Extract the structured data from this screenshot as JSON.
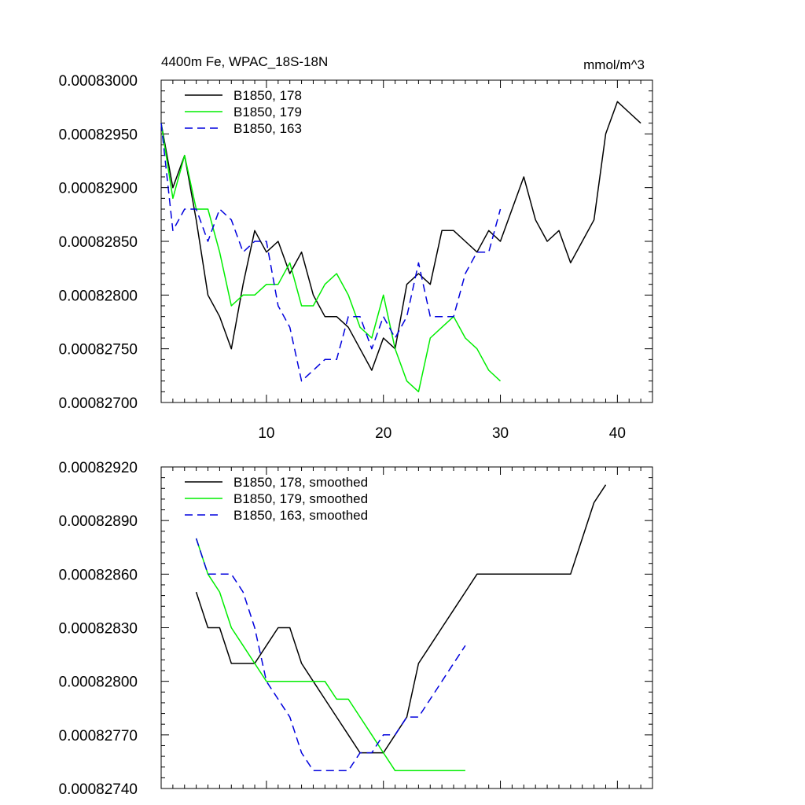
{
  "chart_data": [
    {
      "type": "line",
      "title": "4400m Fe, WPAC_18S-18N",
      "units": "mmol/m^3",
      "xlim": [
        1,
        43
      ],
      "ylim": [
        0.000827,
        0.00083
      ],
      "x_ticks": [
        10,
        20,
        30,
        40
      ],
      "x_tick_labels": [
        "10",
        "20",
        "30",
        "40"
      ],
      "y_ticks": [
        0.000827,
        0.0008275,
        0.000828,
        0.0008285,
        0.000829,
        0.0008295,
        0.00083
      ],
      "y_tick_labels": [
        "0.00082700",
        "0.00082750",
        "0.00082800",
        "0.00082850",
        "0.00082900",
        "0.00082950",
        "0.00083000"
      ],
      "legend_position": "top-left",
      "series": [
        {
          "name": "B1850, 178",
          "color": "#000000",
          "dash": "solid",
          "x": [
            1,
            2,
            3,
            4,
            5,
            6,
            7,
            8,
            9,
            10,
            11,
            12,
            13,
            14,
            15,
            16,
            17,
            18,
            19,
            20,
            21,
            22,
            23,
            24,
            25,
            26,
            27,
            28,
            29,
            30,
            31,
            32,
            33,
            34,
            35,
            36,
            37,
            38,
            39,
            40,
            41,
            42
          ],
          "y": [
            0.0008296,
            0.000829,
            0.0008293,
            0.0008287,
            0.000828,
            0.0008278,
            0.0008275,
            0.0008281,
            0.0008286,
            0.0008284,
            0.0008285,
            0.0008282,
            0.0008284,
            0.000828,
            0.0008278,
            0.0008278,
            0.0008277,
            0.0008275,
            0.0008273,
            0.0008276,
            0.0008275,
            0.0008281,
            0.0008282,
            0.0008281,
            0.0008286,
            0.0008286,
            0.0008285,
            0.0008284,
            0.0008286,
            0.0008285,
            0.0008288,
            0.0008291,
            0.0008287,
            0.0008285,
            0.0008286,
            0.0008283,
            0.0008285,
            0.0008287,
            0.0008295,
            0.0008298,
            0.0008297,
            0.0008296
          ]
        },
        {
          "name": "B1850, 179",
          "color": "#00ee00",
          "dash": "solid",
          "x": [
            1,
            2,
            3,
            4,
            5,
            6,
            7,
            8,
            9,
            10,
            11,
            12,
            13,
            14,
            15,
            16,
            17,
            18,
            19,
            20,
            21,
            22,
            23,
            24,
            25,
            26,
            27,
            28,
            29,
            30
          ],
          "y": [
            0.0008296,
            0.0008289,
            0.0008293,
            0.0008288,
            0.0008288,
            0.0008284,
            0.0008279,
            0.000828,
            0.000828,
            0.0008281,
            0.0008281,
            0.0008283,
            0.0008279,
            0.0008279,
            0.0008281,
            0.0008282,
            0.000828,
            0.0008277,
            0.0008276,
            0.000828,
            0.0008275,
            0.0008272,
            0.0008271,
            0.0008276,
            0.0008277,
            0.0008278,
            0.0008276,
            0.0008275,
            0.0008273,
            0.0008272
          ]
        },
        {
          "name": "B1850, 163",
          "color": "#0000dd",
          "dash": "dashed",
          "x": [
            1,
            2,
            3,
            4,
            5,
            6,
            7,
            8,
            9,
            10,
            11,
            12,
            13,
            14,
            15,
            16,
            17,
            18,
            19,
            20,
            21,
            22,
            23,
            24,
            25,
            26,
            27,
            28,
            29,
            30
          ],
          "y": [
            0.0008296,
            0.0008286,
            0.0008288,
            0.0008288,
            0.0008285,
            0.0008288,
            0.0008287,
            0.0008284,
            0.0008285,
            0.0008285,
            0.0008279,
            0.0008277,
            0.0008272,
            0.0008273,
            0.0008274,
            0.0008274,
            0.0008278,
            0.0008278,
            0.0008275,
            0.0008278,
            0.0008276,
            0.0008278,
            0.0008283,
            0.0008278,
            0.0008278,
            0.0008278,
            0.0008282,
            0.0008284,
            0.0008284,
            0.0008288
          ]
        }
      ]
    },
    {
      "type": "line",
      "title": "",
      "xlim": [
        1,
        43
      ],
      "ylim": [
        0.0008274,
        0.0008292
      ],
      "x_ticks": [
        10,
        20,
        30,
        40
      ],
      "x_tick_labels": [],
      "y_ticks": [
        0.0008274,
        0.0008277,
        0.000828,
        0.0008283,
        0.0008286,
        0.0008289,
        0.0008292
      ],
      "y_tick_labels": [
        "0.00082740",
        "0.00082770",
        "0.00082800",
        "0.00082830",
        "0.00082860",
        "0.00082890",
        "0.00082920"
      ],
      "legend_position": "top-left",
      "series": [
        {
          "name": "B1850, 178, smoothed",
          "color": "#000000",
          "dash": "solid",
          "x": [
            4,
            5,
            6,
            7,
            8,
            9,
            10,
            11,
            12,
            13,
            14,
            15,
            16,
            17,
            18,
            19,
            20,
            21,
            22,
            23,
            24,
            25,
            26,
            27,
            28,
            29,
            30,
            31,
            32,
            33,
            34,
            35,
            36,
            37,
            38,
            39
          ],
          "y": [
            0.0008285,
            0.0008283,
            0.0008283,
            0.0008281,
            0.0008281,
            0.0008281,
            0.0008282,
            0.0008283,
            0.0008283,
            0.0008281,
            0.000828,
            0.0008279,
            0.0008278,
            0.0008277,
            0.0008276,
            0.0008276,
            0.0008276,
            0.0008277,
            0.0008278,
            0.0008281,
            0.0008282,
            0.0008283,
            0.0008284,
            0.0008285,
            0.0008286,
            0.0008286,
            0.0008286,
            0.0008286,
            0.0008286,
            0.0008286,
            0.0008286,
            0.0008286,
            0.0008286,
            0.0008288,
            0.000829,
            0.0008291
          ]
        },
        {
          "name": "B1850, 179, smoothed",
          "color": "#00ee00",
          "dash": "solid",
          "x": [
            4,
            5,
            6,
            7,
            8,
            9,
            10,
            11,
            12,
            13,
            14,
            15,
            16,
            17,
            18,
            19,
            20,
            21,
            22,
            23,
            24,
            25,
            26,
            27
          ],
          "y": [
            0.0008288,
            0.0008286,
            0.0008285,
            0.0008283,
            0.0008282,
            0.0008281,
            0.000828,
            0.000828,
            0.000828,
            0.000828,
            0.000828,
            0.000828,
            0.0008279,
            0.0008279,
            0.0008278,
            0.0008277,
            0.0008276,
            0.0008275,
            0.0008275,
            0.0008275,
            0.0008275,
            0.0008275,
            0.0008275,
            0.0008275
          ]
        },
        {
          "name": "B1850, 163, smoothed",
          "color": "#0000dd",
          "dash": "dashed",
          "x": [
            4,
            5,
            6,
            7,
            8,
            9,
            10,
            11,
            12,
            13,
            14,
            15,
            16,
            17,
            18,
            19,
            20,
            21,
            22,
            23,
            24,
            25,
            26,
            27
          ],
          "y": [
            0.0008288,
            0.0008286,
            0.0008286,
            0.0008286,
            0.0008285,
            0.0008283,
            0.000828,
            0.0008279,
            0.0008278,
            0.0008276,
            0.0008275,
            0.0008275,
            0.0008275,
            0.0008275,
            0.0008276,
            0.0008276,
            0.0008277,
            0.0008277,
            0.0008278,
            0.0008278,
            0.0008279,
            0.000828,
            0.0008281,
            0.0008282
          ]
        }
      ]
    }
  ]
}
